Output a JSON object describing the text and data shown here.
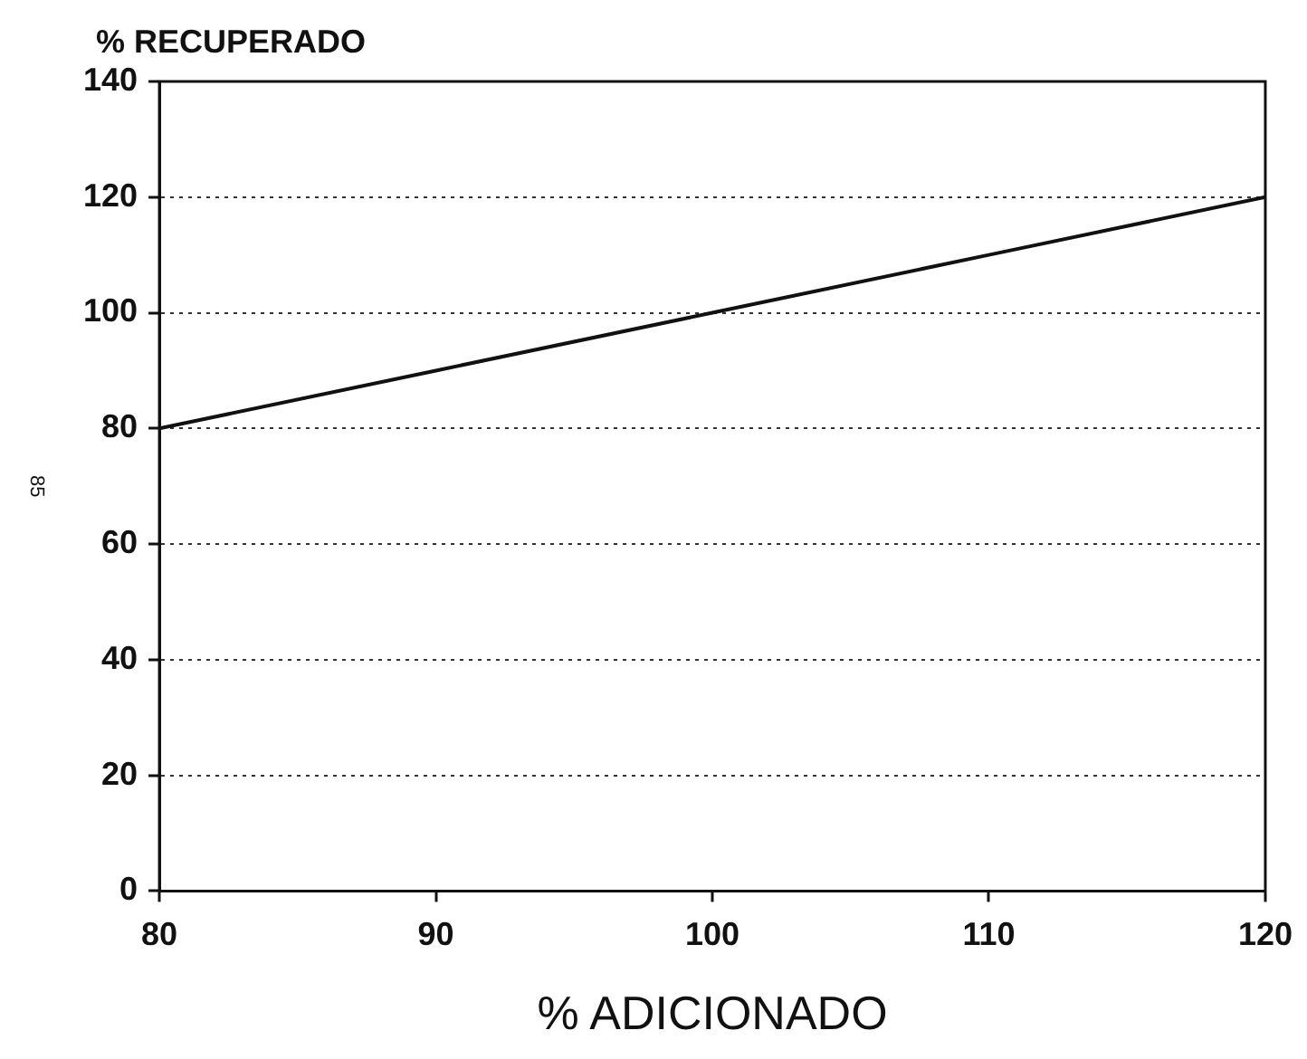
{
  "chart_data": {
    "type": "line",
    "ylabel": "% RECUPERADO",
    "xlabel": "% ADICIONADO",
    "annotations": [
      "85"
    ],
    "x": [
      80,
      90,
      100,
      110,
      120
    ],
    "series": [
      {
        "color": "#111111",
        "values": [
          80,
          90,
          100,
          110,
          120
        ]
      }
    ],
    "xlim": [
      80,
      120
    ],
    "xticks": [
      80,
      90,
      100,
      110,
      120
    ],
    "ylim": [
      0,
      140
    ],
    "yticks": [
      0,
      20,
      40,
      60,
      80,
      100,
      120,
      140
    ],
    "grid": "y",
    "legend": false,
    "marker": "none",
    "line_style": "solid"
  }
}
